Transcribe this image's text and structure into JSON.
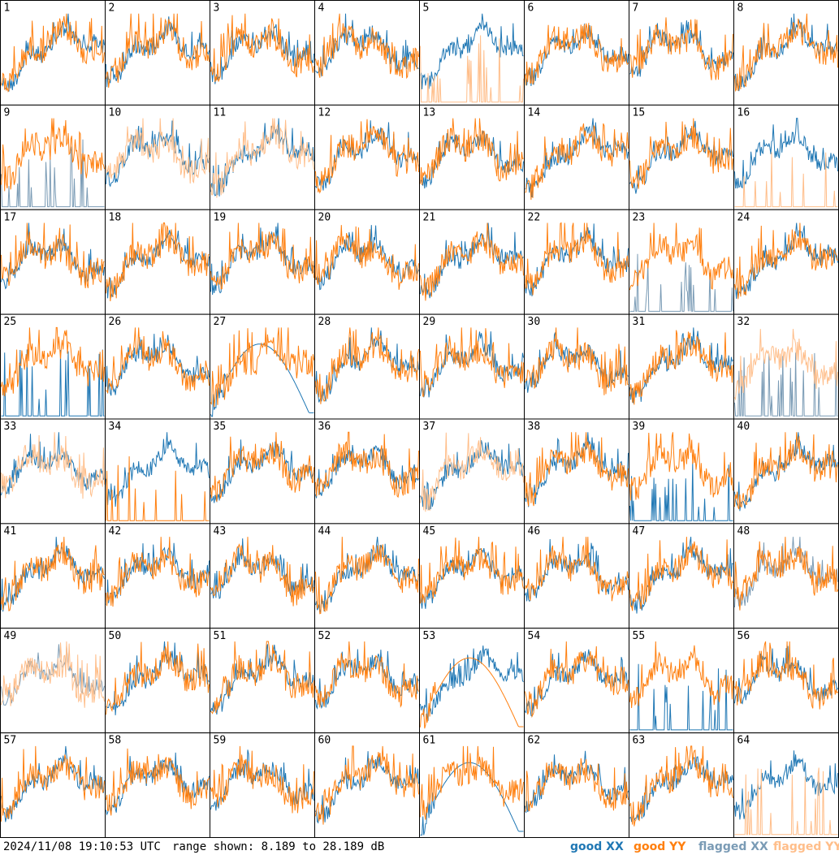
{
  "chart_data": {
    "type": "line",
    "title": "",
    "grid_rows": 8,
    "grid_cols": 8,
    "panel_labels": [
      "1",
      "2",
      "3",
      "4",
      "5",
      "6",
      "7",
      "8",
      "9",
      "10",
      "11",
      "12",
      "13",
      "14",
      "15",
      "16",
      "17",
      "18",
      "19",
      "20",
      "21",
      "22",
      "23",
      "24",
      "25",
      "26",
      "27",
      "28",
      "29",
      "30",
      "31",
      "32",
      "33",
      "34",
      "35",
      "36",
      "37",
      "38",
      "39",
      "40",
      "41",
      "42",
      "43",
      "44",
      "45",
      "46",
      "47",
      "48",
      "49",
      "50",
      "51",
      "52",
      "53",
      "54",
      "55",
      "56",
      "57",
      "58",
      "59",
      "60",
      "61",
      "62",
      "63",
      "64"
    ],
    "ylim": [
      8.189,
      28.189
    ],
    "yunit": "dB",
    "series_legend": [
      {
        "name": "good XX",
        "color": "#1f77b4"
      },
      {
        "name": "good YY",
        "color": "#ff7f0e"
      },
      {
        "name": "flagged XX",
        "color": "#7a9bb5"
      },
      {
        "name": "flagged YY",
        "color": "#ffbe8a"
      }
    ],
    "panels_special": {
      "5": {
        "xx": "good",
        "yy": "flagged",
        "yy_shape": "spikes"
      },
      "9": {
        "xx": "flagged",
        "xx_shape": "spikes"
      },
      "10": {
        "yy": "flagged"
      },
      "11": {
        "yy": "flagged"
      },
      "16": {
        "yy": "flagged",
        "yy_shape": "spikes"
      },
      "23": {
        "xx": "flagged",
        "xx_shape": "spikes"
      },
      "25": {
        "xx_shape": "spikes"
      },
      "27": {
        "xx_shape": "arch"
      },
      "32": {
        "xx": "flagged",
        "yy": "flagged",
        "xx_shape": "spikes"
      },
      "33": {
        "yy": "flagged"
      },
      "34": {
        "yy_shape": "spikes"
      },
      "37": {
        "yy": "flagged"
      },
      "39": {
        "xx_shape": "spikes"
      },
      "48": {
        "xx": "flagged"
      },
      "49": {
        "xx": "flagged",
        "yy": "flagged"
      },
      "53": {
        "yy_shape": "arch"
      },
      "55": {
        "xx_shape": "spikes"
      },
      "61": {
        "xx_shape": "arch"
      },
      "64": {
        "yy": "flagged",
        "yy_shape": "spikes"
      }
    }
  },
  "footer": {
    "timestamp": "2024/11/08 19:10:53 UTC",
    "range_text": "range shown: 8.189 to 28.189 dB"
  },
  "legend": {
    "good_xx": "good XX",
    "good_yy": "good YY",
    "flagged_xx": "flagged XX",
    "flagged_yy": "flagged YY"
  }
}
